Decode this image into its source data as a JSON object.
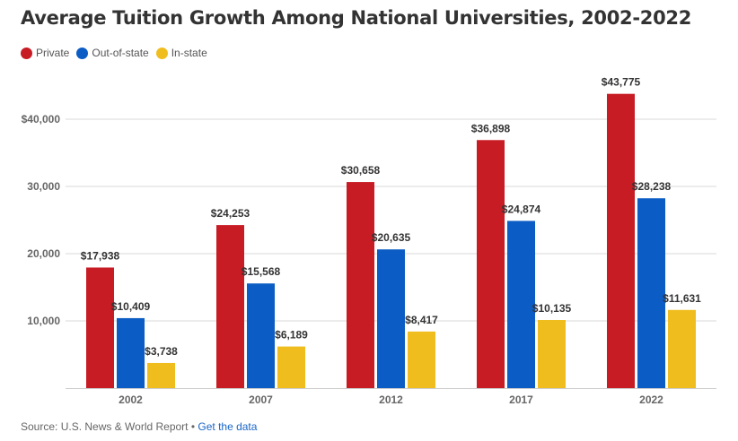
{
  "chart_data": {
    "type": "bar",
    "title": "Average Tuition Growth Among National Universities, 2002-2022",
    "categories": [
      "2002",
      "2007",
      "2012",
      "2017",
      "2022"
    ],
    "series": [
      {
        "name": "Private",
        "color": "#c71c24",
        "values": [
          17938,
          24253,
          30658,
          36898,
          43775
        ],
        "labels": [
          "$17,938",
          "$24,253",
          "$30,658",
          "$36,898",
          "$43,775"
        ]
      },
      {
        "name": "Out-of-state",
        "color": "#0b5cc4",
        "values": [
          10409,
          15568,
          20635,
          24874,
          28238
        ],
        "labels": [
          "$10,409",
          "$15,568",
          "$20,635",
          "$24,874",
          "$28,238"
        ]
      },
      {
        "name": "In-state",
        "color": "#f0bd1f",
        "values": [
          3738,
          6189,
          8417,
          10135,
          11631
        ],
        "labels": [
          "$3,738",
          "$6,189",
          "$8,417",
          "$10,135",
          "$11,631"
        ]
      }
    ],
    "ylim": [
      0,
      40000
    ],
    "yticks": [
      10000,
      20000,
      30000,
      40000
    ],
    "ytick_labels": [
      "10,000",
      "20,000",
      "30,000",
      "$40,000"
    ],
    "grid": true,
    "legend": "top-left"
  },
  "footer": {
    "source": "Source: U.S. News & World Report",
    "separator": " • ",
    "link": "Get the data"
  }
}
